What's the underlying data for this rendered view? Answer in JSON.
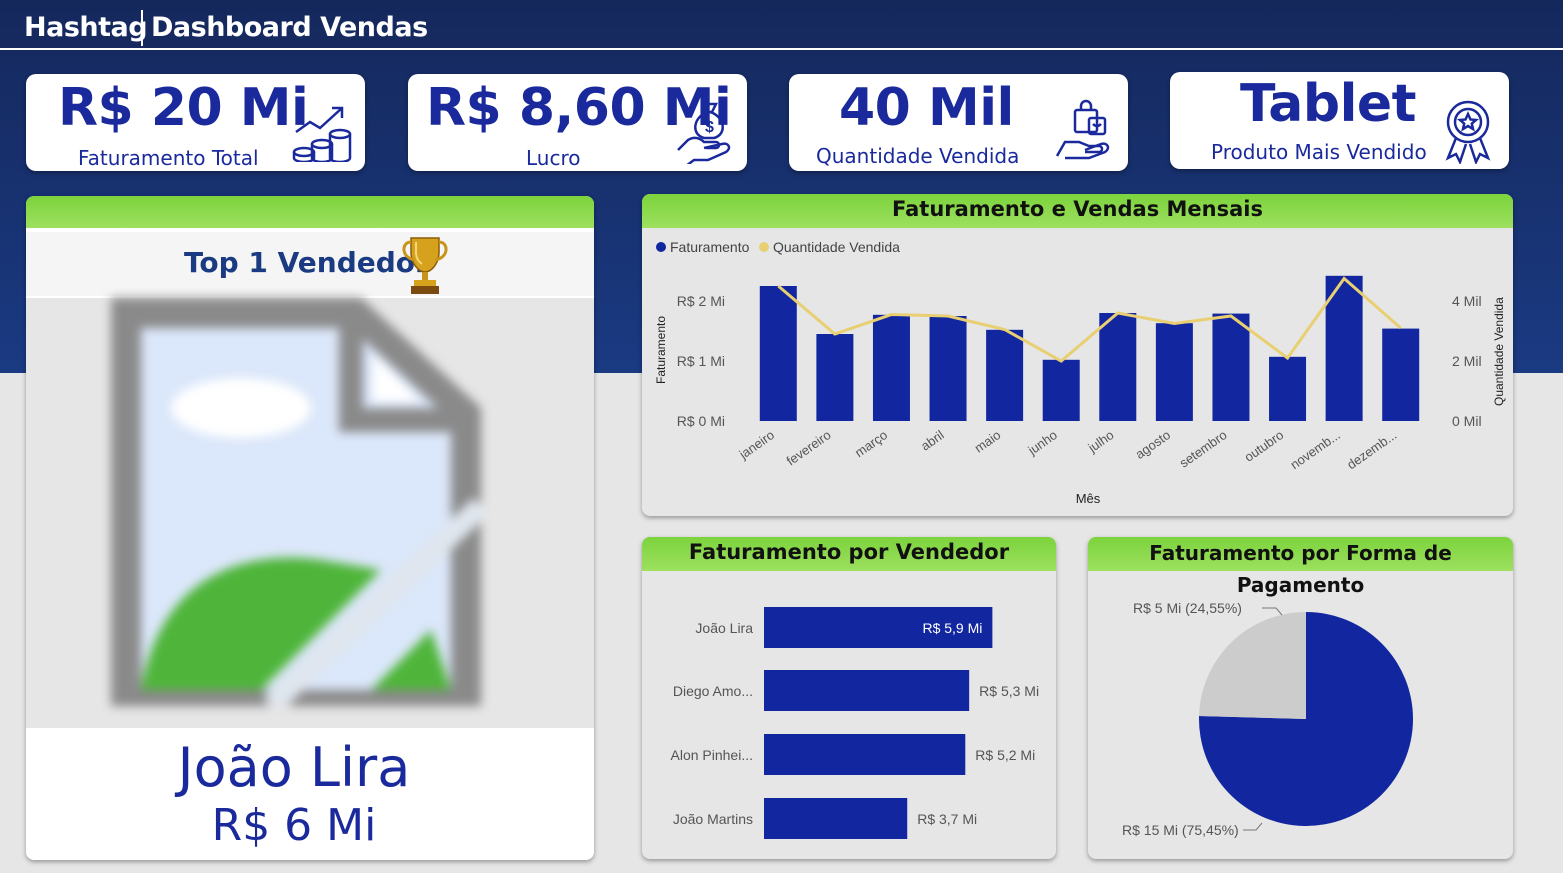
{
  "header": {
    "brand": "Hashtag",
    "title": "Dashboard Vendas"
  },
  "kpis": [
    {
      "value": "R$ 20 Mi",
      "label": "Faturamento Total",
      "icon": "coins-growth-icon"
    },
    {
      "value": "R$ 8,60 Mi",
      "label": "Lucro",
      "icon": "money-bag-hand-icon"
    },
    {
      "value": "40 Mil",
      "label": "Quantidade Vendida",
      "icon": "shopping-bag-hand-icon"
    },
    {
      "value": "Tablet",
      "label": "Produto Mais Vendido",
      "icon": "award-badge-icon"
    }
  ],
  "top_seller": {
    "title": "Top 1 Vendedor",
    "name": "João Lira",
    "value": "R$ 6 Mi",
    "trophy_icon": "trophy-icon",
    "photo_icon": "broken-image-placeholder-icon"
  },
  "monthly_chart": {
    "title": "Faturamento e Vendas Mensais",
    "legend": [
      "Faturamento",
      "Quantidade Vendida"
    ],
    "ylabel_left": "Faturamento",
    "ylabel_right": "Quantidade Vendida",
    "xlabel": "Mês",
    "left_ticks": [
      "R$ 0 Mi",
      "R$ 1 Mi",
      "R$ 2 Mi"
    ],
    "right_ticks": [
      "0 Mil",
      "2 Mil",
      "4 Mil"
    ]
  },
  "seller_chart": {
    "title": "Faturamento por Vendedor"
  },
  "payment_chart": {
    "title": "Faturamento por Forma de Pagamento",
    "labels": [
      "R$ 5 Mi (24,55%)",
      "R$ 15 Mi (75,45%)"
    ]
  },
  "colors": {
    "primary": "#1a2a9c",
    "bar": "#1226a0",
    "line": "#e8cf72",
    "header_green": "#8fdb4e",
    "grey_slice": "#cccccc"
  },
  "chart_data": [
    {
      "type": "bar",
      "title": "Faturamento e Vendas Mensais",
      "xlabel": "Mês",
      "ylabel": "Faturamento",
      "categories": [
        "janeiro",
        "fevereiro",
        "março",
        "abril",
        "maio",
        "junho",
        "julho",
        "agosto",
        "setembro",
        "outubro",
        "novemb...",
        "dezemb..."
      ],
      "series": [
        {
          "name": "Faturamento",
          "values": [
            2.25,
            1.45,
            1.77,
            1.75,
            1.52,
            1.02,
            1.8,
            1.63,
            1.79,
            1.07,
            2.42,
            1.54
          ]
        },
        {
          "name": "Quantidade Vendida",
          "values": [
            4.5,
            2.9,
            3.55,
            3.5,
            3.05,
            2.0,
            3.6,
            3.25,
            3.5,
            2.1,
            4.75,
            3.1
          ]
        }
      ],
      "ylim": [
        0,
        2.5
      ],
      "y2lim": [
        0,
        5
      ],
      "grid": false,
      "legend": "top-left"
    },
    {
      "type": "bar",
      "title": "Faturamento por Vendedor",
      "orientation": "horizontal",
      "categories": [
        "João Lira",
        "Diego Amo...",
        "Alon Pinhei...",
        "João Martins"
      ],
      "values": [
        5.9,
        5.3,
        5.2,
        3.7
      ],
      "value_labels": [
        "R$ 5,9 Mi",
        "R$ 5,3 Mi",
        "R$ 5,2 Mi",
        "R$ 3,7 Mi"
      ],
      "xlim": [
        0,
        6.2
      ]
    },
    {
      "type": "pie",
      "title": "Faturamento por Forma de Pagamento",
      "values": [
        75.45,
        24.55
      ],
      "labels": [
        "R$ 15 Mi (75,45%)",
        "R$ 5 Mi (24,55%)"
      ],
      "colors": [
        "#1226a0",
        "#cccccc"
      ]
    }
  ]
}
